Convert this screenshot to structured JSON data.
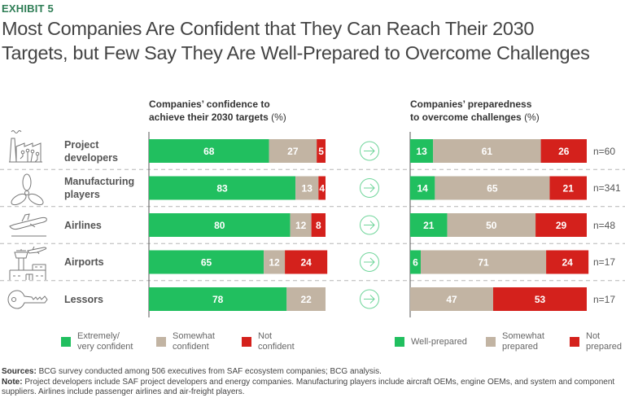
{
  "exhibit_label": "EXHIBIT 5",
  "title_line1": "Most Companies Are Confident that They Can Reach Their 2030",
  "title_line2": "Targets, but Few Say They Are Well-Prepared to Overcome Challenges",
  "colors": {
    "green": "#21bf5f",
    "beige": "#c2b4a3",
    "red": "#d4211c",
    "arrow": "#6fd59a",
    "exhibit": "#2e7d55"
  },
  "chart_data": {
    "type": "bar",
    "stacked": true,
    "orientation": "horizontal",
    "categories": [
      "Project developers",
      "Manufacturing players",
      "Airlines",
      "Airports",
      "Lessors"
    ],
    "category_lines": [
      [
        "Project",
        "developers"
      ],
      [
        "Manufacturing",
        "players"
      ],
      [
        "Airlines"
      ],
      [
        "Airports"
      ],
      [
        "Lessors"
      ]
    ],
    "category_icons": [
      "factory-icon",
      "propeller-icon",
      "airplane-takeoff-icon",
      "airport-icon",
      "key-icon"
    ],
    "sample_sizes": [
      "n=60",
      "n=341",
      "n=48",
      "n=17",
      "n=17"
    ],
    "panels": [
      {
        "title_line1": "Companies’ confidence to",
        "title_line2": "achieve their 2030 targets",
        "unit": "(%)",
        "series": [
          {
            "name": "Extremely/ very confident",
            "legend_lines": [
              "Extremely/",
              "very confident"
            ],
            "color": "#21bf5f",
            "values": [
              68,
              83,
              80,
              65,
              78
            ]
          },
          {
            "name": "Somewhat confident",
            "legend_lines": [
              "Somewhat",
              "confident"
            ],
            "color": "#c2b4a3",
            "values": [
              27,
              13,
              12,
              12,
              22
            ]
          },
          {
            "name": "Not confident",
            "legend_lines": [
              "Not",
              "confident"
            ],
            "color": "#d4211c",
            "values": [
              5,
              4,
              8,
              24,
              0
            ]
          }
        ]
      },
      {
        "title_line1": "Companies’ preparedness",
        "title_line2": "to overcome challenges",
        "unit": "(%)",
        "series": [
          {
            "name": "Well-prepared",
            "legend_lines": [
              "Well-prepared"
            ],
            "color": "#21bf5f",
            "values": [
              13,
              14,
              21,
              6,
              0
            ]
          },
          {
            "name": "Somewhat prepared",
            "legend_lines": [
              "Somewhat",
              "prepared"
            ],
            "color": "#c2b4a3",
            "values": [
              61,
              65,
              50,
              71,
              47
            ]
          },
          {
            "name": "Not prepared",
            "legend_lines": [
              "Not",
              "prepared"
            ],
            "color": "#d4211c",
            "values": [
              26,
              21,
              29,
              24,
              53
            ]
          }
        ]
      }
    ],
    "xlim": [
      0,
      100
    ],
    "grid": false
  },
  "footer": {
    "sources_label": "Sources:",
    "sources_text": " BCG survey conducted among 506 executives from SAF ecosystem companies; BCG analysis.",
    "note_label": "Note:",
    "note_text": " Project developers include SAF project developers and energy companies. Manufacturing players include aircraft OEMs, engine OEMs, and system and component suppliers. Airlines include passenger airlines and air-freight players."
  }
}
